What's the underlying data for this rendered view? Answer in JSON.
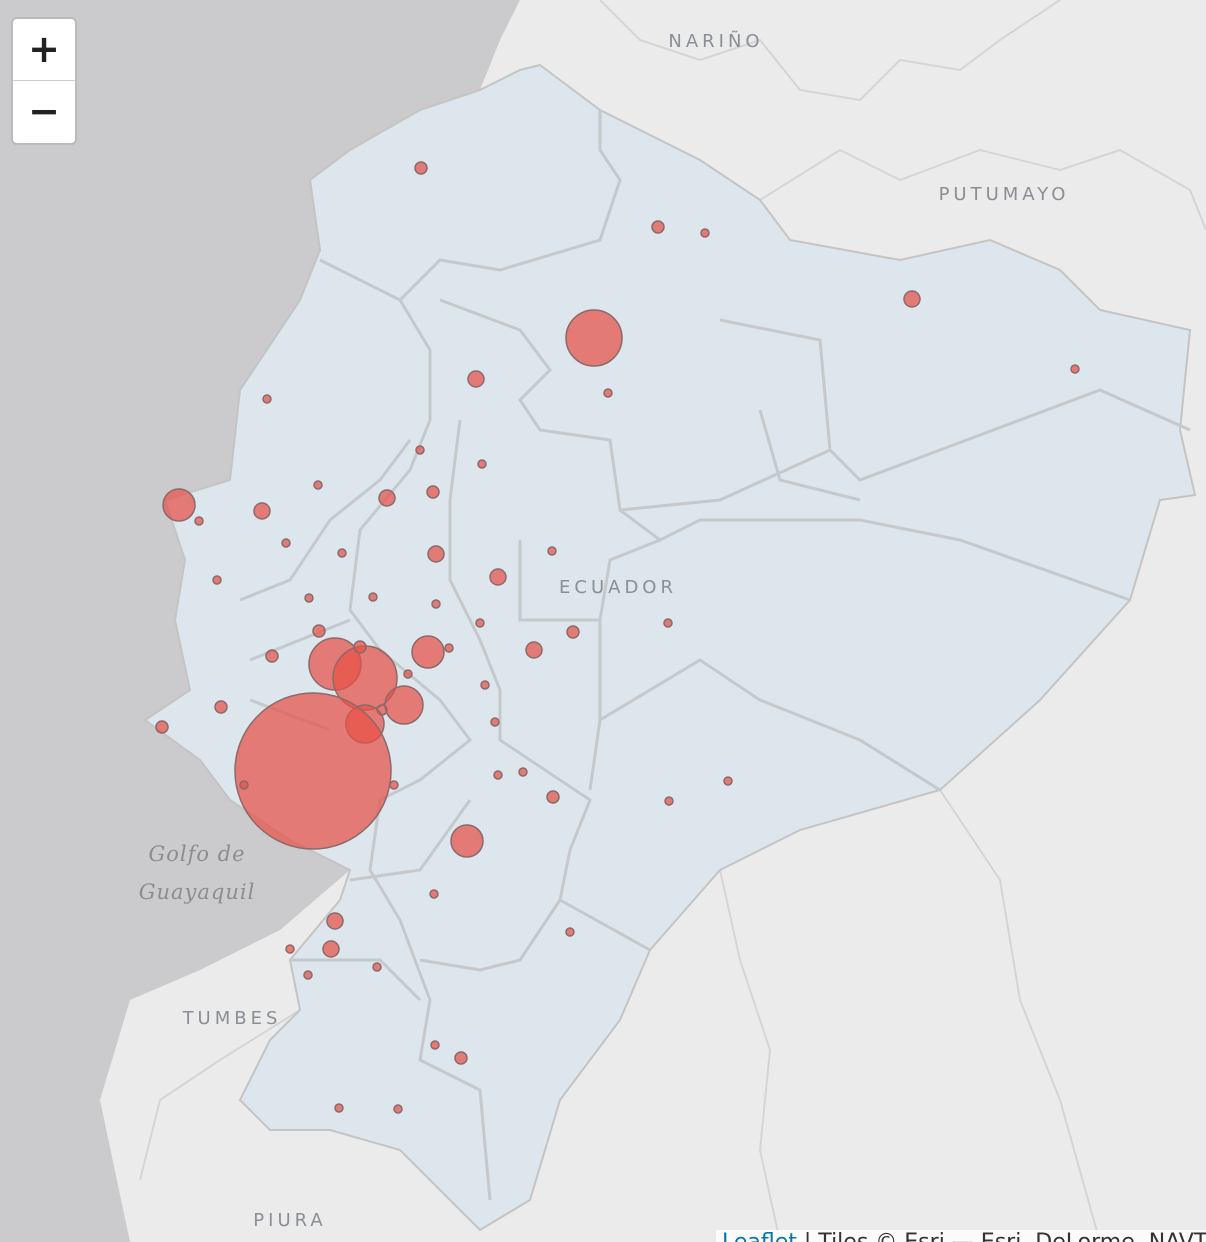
{
  "zoom": {
    "zoom_in": "+",
    "zoom_out": "−"
  },
  "labels": {
    "narino": "NARIÑO",
    "putumayo": "PUTUMAYO",
    "ecuador": "ECUADOR",
    "gulf_line1": "Golfo de",
    "gulf_line2": "Guayaquil",
    "tumbes": "TUMBES",
    "piura": "PIURA"
  },
  "attribution": {
    "link": "Leaflet",
    "text": "| Tiles © Esri — Esri, DeLorme, NAVTEQ"
  }
}
